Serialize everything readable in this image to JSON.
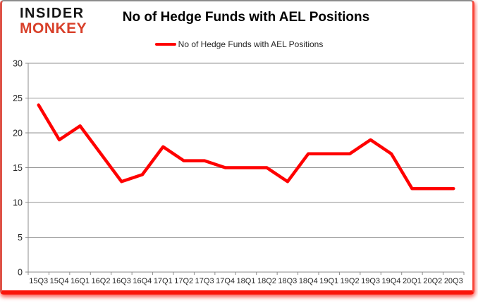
{
  "brand": {
    "line1": "INSIDER",
    "line2": "MONKEY"
  },
  "header": {
    "title": "No of Hedge Funds with AEL Positions"
  },
  "legend": {
    "label": "No of Hedge Funds with AEL Positions"
  },
  "chart_data": {
    "type": "line",
    "title": "No of Hedge Funds with AEL Positions",
    "categories": [
      "15Q3",
      "15Q4",
      "16Q1",
      "16Q2",
      "16Q3",
      "16Q4",
      "17Q1",
      "17Q2",
      "17Q3",
      "17Q4",
      "18Q1",
      "18Q2",
      "18Q3",
      "18Q4",
      "19Q1",
      "19Q2",
      "19Q3",
      "19Q4",
      "20Q1",
      "20Q2",
      "20Q3"
    ],
    "series": [
      {
        "name": "No of Hedge Funds with AEL Positions",
        "values": [
          24,
          19,
          21,
          17,
          13,
          14,
          18,
          16,
          16,
          15,
          15,
          15,
          13,
          17,
          17,
          17,
          19,
          17,
          12,
          12,
          12
        ]
      }
    ],
    "xlabel": "",
    "ylabel": "",
    "ylim": [
      0,
      30
    ],
    "ytick_step": 5,
    "grid": true,
    "legend_position": "top-center"
  },
  "colors": {
    "line": "#ff0000",
    "grid": "#909090",
    "axis": "#8c8c8c",
    "tick_label": "#262626",
    "title_text": "#000000",
    "brand_black": "#141414",
    "brand_red": "#d8402a",
    "frame_red": "#fa140a"
  }
}
